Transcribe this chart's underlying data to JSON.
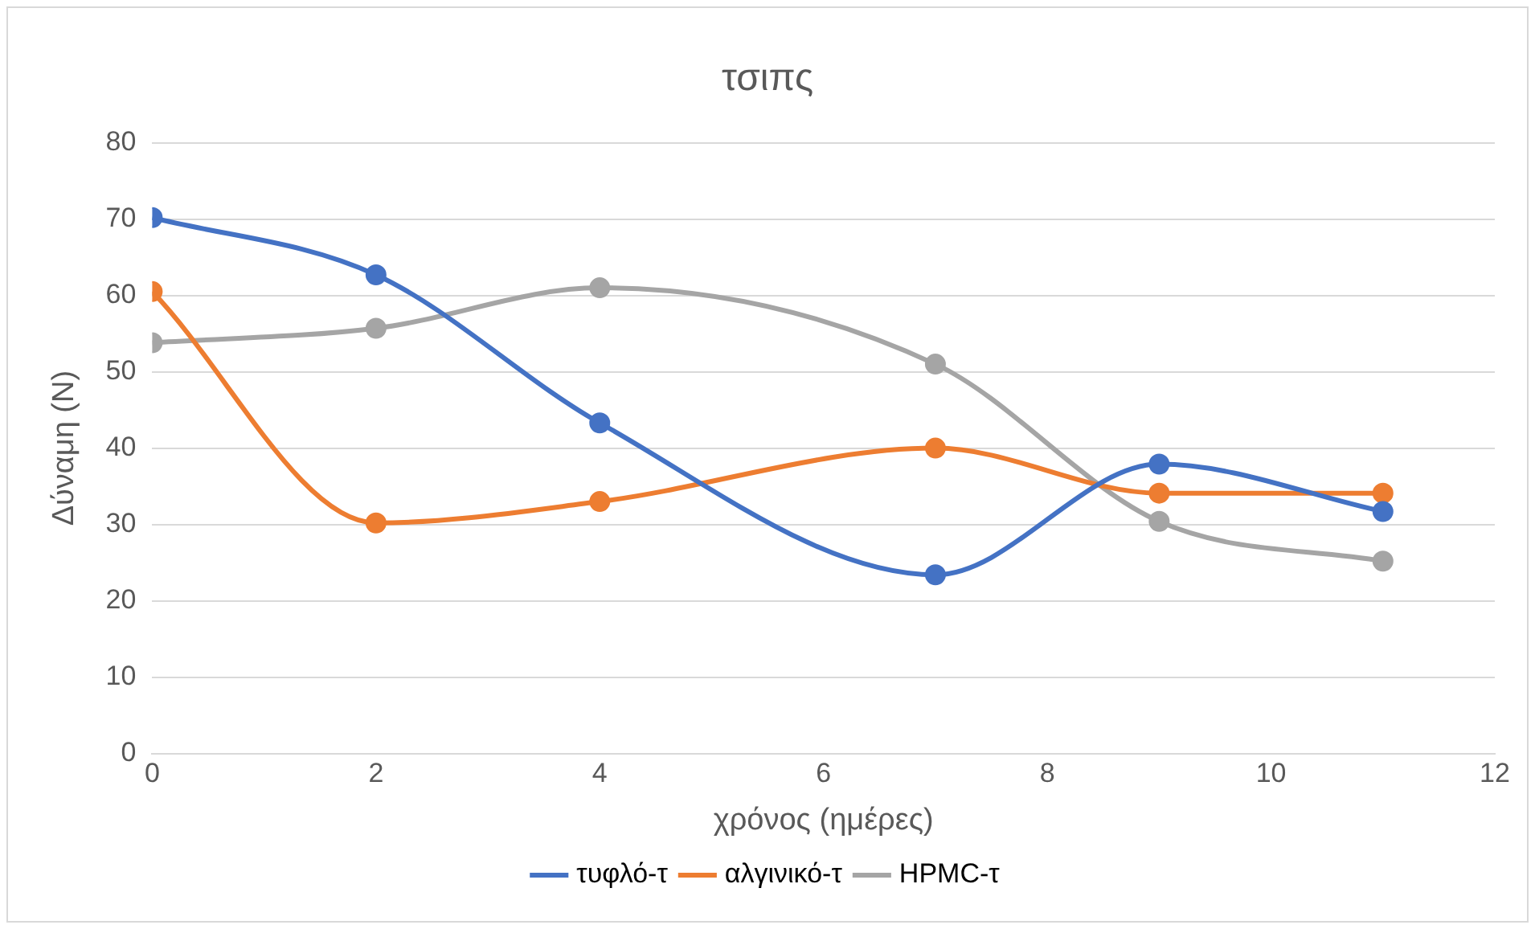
{
  "chart_data": {
    "type": "line",
    "title": "τσιπς",
    "xlabel": "χρόνος (ημέρες)",
    "ylabel": "Δύναμη (N)",
    "x": [
      0,
      2,
      4,
      7,
      9,
      11
    ],
    "series": [
      {
        "name": "τυφλό-τ",
        "color": "#4472c4",
        "values": [
          70.2,
          62.7,
          43.3,
          23.4,
          37.9,
          31.7
        ]
      },
      {
        "name": "αλγινικό-τ",
        "color": "#ed7d31",
        "values": [
          60.5,
          30.2,
          33,
          40,
          34.1,
          34.1
        ]
      },
      {
        "name": "HPMC-τ",
        "color": "#a5a5a5",
        "values": [
          53.8,
          55.7,
          61,
          51,
          30.4,
          25.2
        ]
      }
    ],
    "xlim": [
      0,
      12
    ],
    "xticks": [
      0,
      2,
      4,
      6,
      8,
      10,
      12
    ],
    "ylim": [
      0,
      80
    ],
    "yticks": [
      0,
      10,
      20,
      30,
      40,
      50,
      60,
      70,
      80
    ],
    "grid": "y",
    "legend": "bottom",
    "marker": "circle",
    "line_style": "solid"
  }
}
